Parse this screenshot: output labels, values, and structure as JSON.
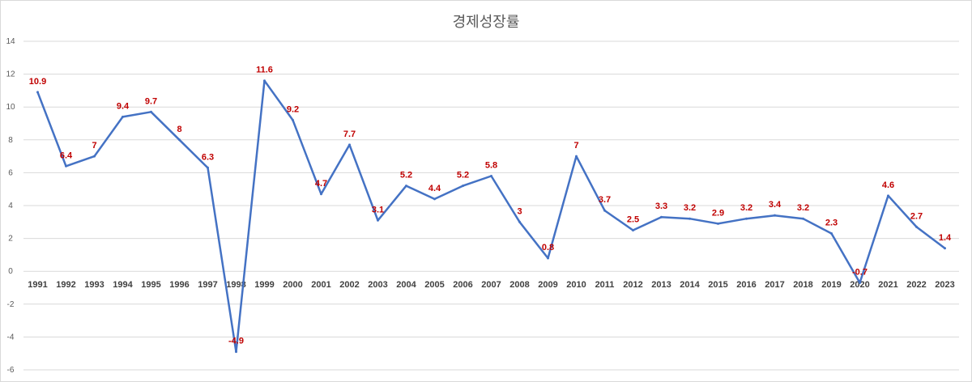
{
  "chart_data": {
    "type": "line",
    "title": "경제성장률",
    "xlabel": "",
    "ylabel": "",
    "ylim": [
      -6,
      14
    ],
    "yticks": [
      -6,
      -4,
      -2,
      0,
      2,
      4,
      6,
      8,
      10,
      12,
      14
    ],
    "grid": true,
    "legend": "none",
    "categories": [
      "1991",
      "1992",
      "1993",
      "1994",
      "1995",
      "1996",
      "1997",
      "1998",
      "1999",
      "2000",
      "2001",
      "2002",
      "2003",
      "2004",
      "2005",
      "2006",
      "2007",
      "2008",
      "2009",
      "2010",
      "2011",
      "2012",
      "2013",
      "2014",
      "2015",
      "2016",
      "2017",
      "2018",
      "2019",
      "2020",
      "2021",
      "2022",
      "2023"
    ],
    "series": [
      {
        "values": [
          10.9,
          6.4,
          7,
          9.4,
          9.7,
          8,
          6.3,
          -4.9,
          11.6,
          9.2,
          4.7,
          7.7,
          3.1,
          5.2,
          4.4,
          5.2,
          5.8,
          3,
          0.8,
          7,
          3.7,
          2.5,
          3.3,
          3.2,
          2.9,
          3.2,
          3.4,
          3.2,
          2.3,
          -0.7,
          4.6,
          2.7,
          1.4
        ],
        "data_labels": [
          "10.9",
          "6.4",
          "7",
          "9.4",
          "9.7",
          "8",
          "6.3",
          "-4.9",
          "11.6",
          "9.2",
          "4.7",
          "7.7",
          "3.1",
          "5.2",
          "4.4",
          "5.2",
          "5.8",
          "3",
          "0.8",
          "7",
          "3.7",
          "2.5",
          "3.3",
          "3.2",
          "2.9",
          "3.2",
          "3.4",
          "3.2",
          "2.3",
          "-0.7",
          "4.6",
          "2.7",
          "1.4"
        ]
      }
    ],
    "colors": {
      "line": "#4472c4",
      "data_label": "#c00000",
      "grid": "#d9d9d9"
    }
  }
}
